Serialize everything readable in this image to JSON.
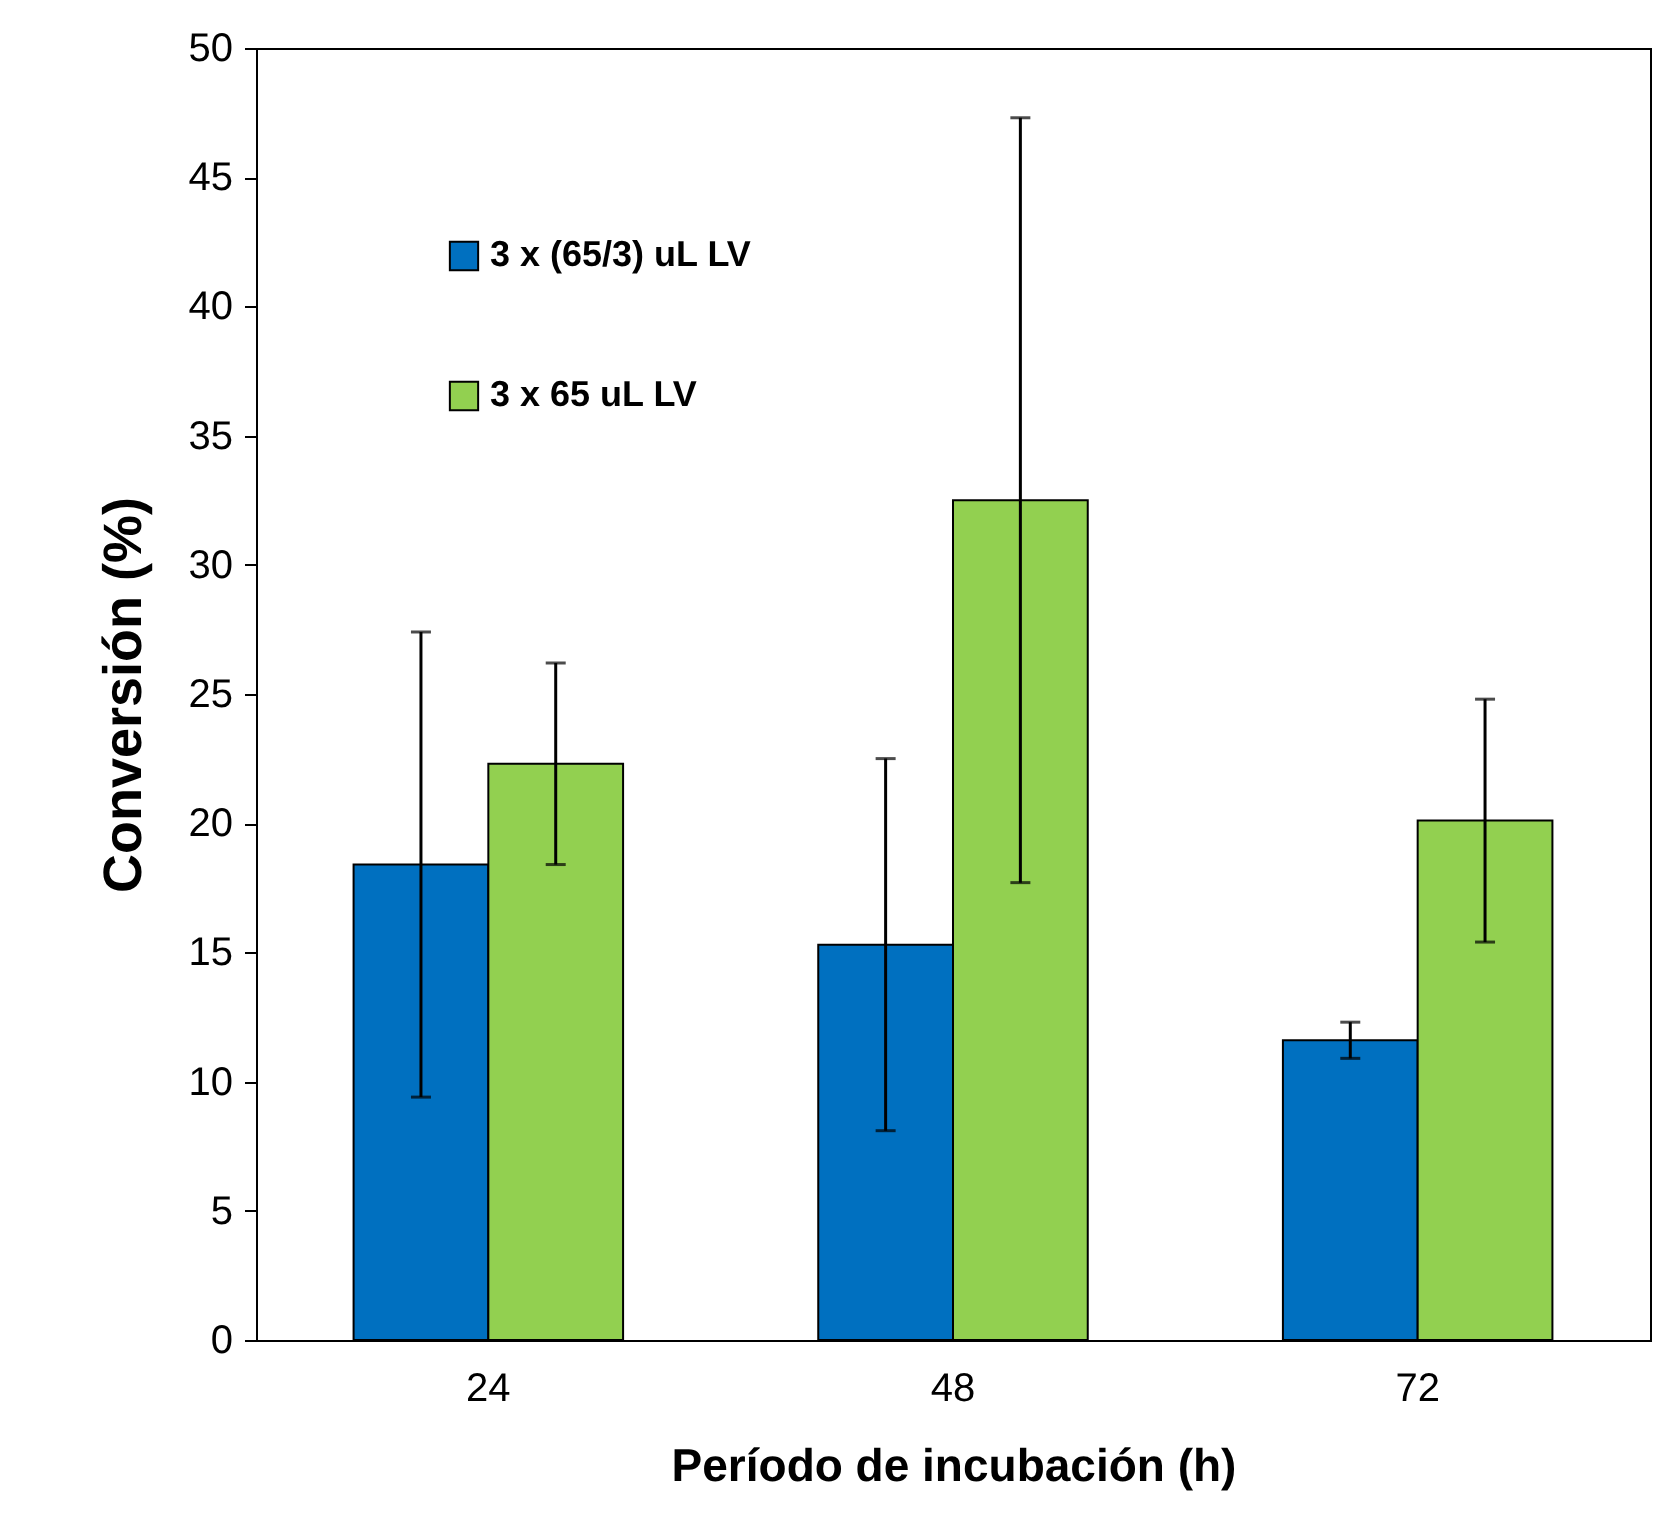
{
  "chart_data": {
    "type": "bar",
    "xlabel": "Período de incubación (h)",
    "ylabel": "Conversión (%)",
    "categories": [
      "24",
      "48",
      "72"
    ],
    "series": [
      {
        "name": "3 x (65/3) uL LV",
        "color": "#0070c0",
        "values": [
          18.4,
          15.3,
          11.6
        ],
        "errors": [
          9,
          7.2,
          0.7
        ]
      },
      {
        "name": "3 x 65 uL LV",
        "color": "#92d050",
        "values": [
          22.3,
          32.5,
          20.1
        ],
        "errors": [
          3.9,
          14.8,
          4.7
        ]
      }
    ],
    "ylim": [
      0,
      50
    ],
    "yticks": [
      0,
      5,
      10,
      15,
      20,
      25,
      30,
      35,
      40,
      45,
      50
    ],
    "grid": false,
    "legend": "top left"
  }
}
